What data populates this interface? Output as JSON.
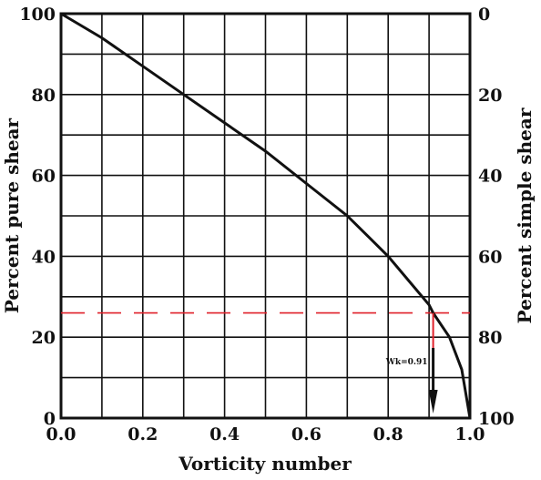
{
  "chart_data": {
    "type": "line",
    "title": "",
    "xlabel": "Vorticity number",
    "ylabel": "Percent pure shear",
    "y2label": "Percent simple shear",
    "xlim": [
      0,
      1
    ],
    "ylim": [
      0,
      100
    ],
    "y2lim": [
      100,
      0
    ],
    "grid": true,
    "x_ticks": [
      0.0,
      0.2,
      0.4,
      0.6,
      0.8,
      1.0
    ],
    "x_tick_labels": [
      "0.0",
      "0.2",
      "0.4",
      "0.6",
      "0.8",
      "1.0"
    ],
    "y_ticks": [
      0,
      20,
      40,
      60,
      80,
      100
    ],
    "y_tick_labels": [
      "0",
      "20",
      "40",
      "60",
      "80",
      "100"
    ],
    "y2_tick_labels": [
      "100",
      "80",
      "60",
      "40",
      "20",
      "0"
    ],
    "series": [
      {
        "x": [
          0.0,
          0.1,
          0.2,
          0.3,
          0.4,
          0.5,
          0.6,
          0.7,
          0.75,
          0.8,
          0.85,
          0.9,
          0.91,
          0.95,
          0.98,
          1.0
        ],
        "y": [
          100,
          94,
          87,
          80,
          73,
          66,
          58,
          50,
          45,
          40,
          34,
          28,
          26,
          20,
          12,
          0
        ]
      }
    ],
    "reference_line": {
      "y": 26,
      "color": "#e0202a",
      "style": "dashed"
    },
    "annotation": {
      "text": "Wk=0.91",
      "x": 0.91,
      "arrow": "down"
    }
  }
}
